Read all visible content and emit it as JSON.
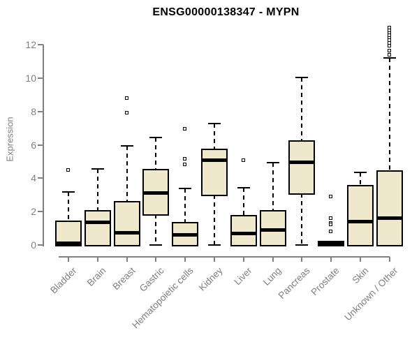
{
  "chart_data": {
    "type": "boxplot",
    "title": "ENSG00000138347 - MYPN",
    "ylabel": "Expression",
    "xlabel": "",
    "ylim": [
      0,
      13.2
    ],
    "yticks": [
      0,
      2,
      4,
      6,
      8,
      10,
      12
    ],
    "grid": false,
    "legend": "none",
    "categories": [
      "Bladder",
      "Brain",
      "Breast",
      "Gastric",
      "Hematopoietic cells",
      "Kidney",
      "Liver",
      "Lung",
      "Pancreas",
      "Prostate",
      "Skin",
      "Unknown / Other"
    ],
    "series": [
      {
        "category": "Bladder",
        "whisker_low": 0,
        "q1": 0,
        "median": 0.1,
        "q3": 1.4,
        "whisker_high": 3.2,
        "outliers": [
          4.5
        ]
      },
      {
        "category": "Brain",
        "whisker_low": 0,
        "q1": 0,
        "median": 1.35,
        "q3": 2.0,
        "whisker_high": 4.55,
        "outliers": []
      },
      {
        "category": "Breast",
        "whisker_low": 0,
        "q1": 0,
        "median": 0.75,
        "q3": 2.55,
        "whisker_high": 5.95,
        "outliers": [
          8.8,
          7.9
        ]
      },
      {
        "category": "Gastric",
        "whisker_low": 0,
        "q1": 1.85,
        "median": 3.1,
        "q3": 4.5,
        "whisker_high": 6.45,
        "outliers": []
      },
      {
        "category": "Hematopoietic cells",
        "whisker_low": 0,
        "q1": 0,
        "median": 0.6,
        "q3": 1.3,
        "whisker_high": 3.4,
        "outliers": [
          6.95,
          5.15,
          4.8
        ]
      },
      {
        "category": "Kidney",
        "whisker_low": 0,
        "q1": 3.0,
        "median": 5.1,
        "q3": 5.7,
        "whisker_high": 7.3,
        "outliers": []
      },
      {
        "category": "Liver",
        "whisker_low": 0,
        "q1": 0,
        "median": 0.7,
        "q3": 1.7,
        "whisker_high": 3.45,
        "outliers": [
          5.05
        ]
      },
      {
        "category": "Lung",
        "whisker_low": 0,
        "q1": 0,
        "median": 0.9,
        "q3": 2.0,
        "whisker_high": 4.95,
        "outliers": []
      },
      {
        "category": "Pancreas",
        "whisker_low": 0,
        "q1": 3.1,
        "median": 4.95,
        "q3": 6.2,
        "whisker_high": 10.05,
        "outliers": []
      },
      {
        "category": "Prostate",
        "whisker_low": 0,
        "q1": 0,
        "median": 0.05,
        "q3": 0.15,
        "whisker_high": 0.15,
        "outliers": [
          2.9,
          1.6,
          1.3,
          1.2,
          0.8
        ]
      },
      {
        "category": "Skin",
        "whisker_low": 0,
        "q1": 0,
        "median": 1.4,
        "q3": 3.5,
        "whisker_high": 4.35,
        "outliers": []
      },
      {
        "category": "Unknown / Other",
        "whisker_low": 0,
        "q1": 0,
        "median": 1.6,
        "q3": 4.4,
        "whisker_high": 11.2,
        "outliers": [
          13.0,
          12.85,
          12.7,
          12.55,
          12.4,
          12.25,
          12.1,
          11.95,
          11.65,
          11.4
        ]
      }
    ],
    "colors": {
      "box_fill": "#f0e8cc",
      "box_border": "#000000",
      "median": "#000000",
      "whisker": "#000000",
      "axis": "#808080",
      "text_muted": "#7f7f7f",
      "title_text": "#000000",
      "background": "#ffffff"
    }
  }
}
